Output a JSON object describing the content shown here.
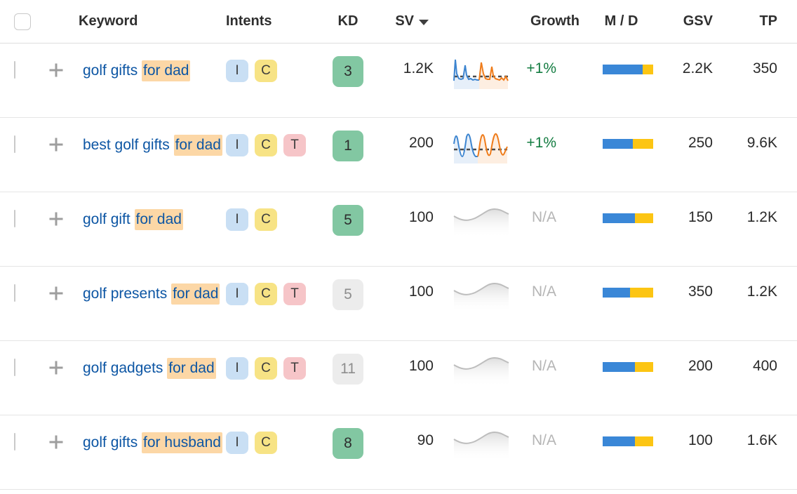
{
  "header": {
    "keyword": "Keyword",
    "intents": "Intents",
    "kd": "KD",
    "sv": "SV",
    "growth": "Growth",
    "md": "M / D",
    "gsv": "GSV",
    "tp": "TP"
  },
  "colors": {
    "keyword_link": "#0d56a4",
    "keyword_highlight_bg": "#fcd7a6",
    "intent_badges": {
      "I": "#c9dff4",
      "C": "#f7e385",
      "T": "#f6c5c8"
    },
    "kd_badge_green": "#82c7a2",
    "kd_badge_gray": "#ececec",
    "growth_positive": "#137c41",
    "growth_na": "#b5b5b5",
    "md_blue": "#3a87d7",
    "md_yellow": "#fcc513",
    "spark_blue": "#3d85d0",
    "spark_orange": "#ef7c1b",
    "spark_gray": "#bdbdbd"
  },
  "rows": [
    {
      "keyword": "golf gifts for dad",
      "highlight": "for dad",
      "intents": [
        "I",
        "C"
      ],
      "kd": "3",
      "kd_style": "green",
      "sv": "1.2K",
      "trend": "spiky",
      "growth": "+1%",
      "growth_style": "positive",
      "md_blue_pct": 79,
      "gsv": "2.2K",
      "tp": "350"
    },
    {
      "keyword": "best golf gifts for dad",
      "highlight": "for dad",
      "intents": [
        "I",
        "C",
        "T"
      ],
      "kd": "1",
      "kd_style": "green",
      "sv": "200",
      "trend": "wavy",
      "growth": "+1%",
      "growth_style": "positive",
      "md_blue_pct": 60,
      "gsv": "250",
      "tp": "9.6K"
    },
    {
      "keyword": "golf gift for dad",
      "highlight": "for dad",
      "intents": [
        "I",
        "C"
      ],
      "kd": "5",
      "kd_style": "green",
      "sv": "100",
      "trend": "flat",
      "growth": "N/A",
      "growth_style": "na",
      "md_blue_pct": 64,
      "gsv": "150",
      "tp": "1.2K"
    },
    {
      "keyword": "golf presents for dad",
      "highlight": "for dad",
      "intents": [
        "I",
        "C",
        "T"
      ],
      "kd": "5",
      "kd_style": "gray",
      "sv": "100",
      "trend": "flat",
      "growth": "N/A",
      "growth_style": "na",
      "md_blue_pct": 54,
      "gsv": "350",
      "tp": "1.2K"
    },
    {
      "keyword": "golf gadgets for dad",
      "highlight": "for dad",
      "intents": [
        "I",
        "C",
        "T"
      ],
      "kd": "11",
      "kd_style": "gray",
      "sv": "100",
      "trend": "flat",
      "growth": "N/A",
      "growth_style": "na",
      "md_blue_pct": 64,
      "gsv": "200",
      "tp": "400"
    },
    {
      "keyword": "golf gifts for husband",
      "highlight": "for husband",
      "intents": [
        "I",
        "C"
      ],
      "kd": "8",
      "kd_style": "green",
      "sv": "90",
      "trend": "flat",
      "growth": "N/A",
      "growth_style": "na",
      "md_blue_pct": 64,
      "gsv": "100",
      "tp": "1.6K"
    }
  ]
}
